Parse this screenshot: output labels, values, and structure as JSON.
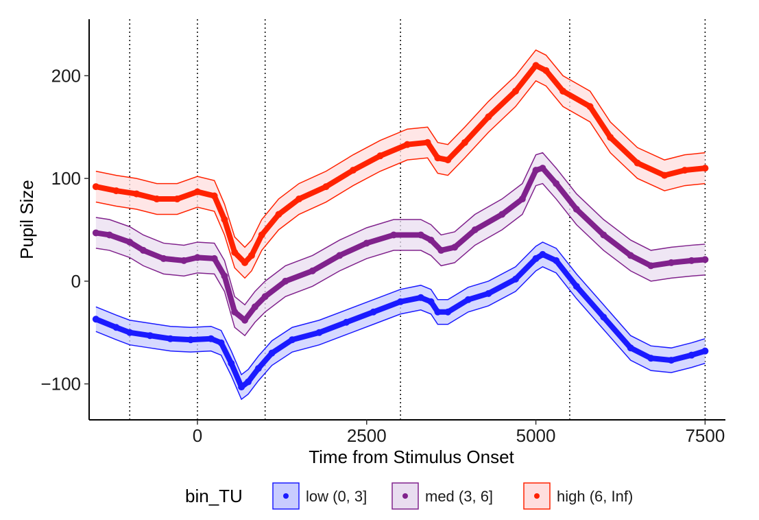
{
  "chart_data": {
    "type": "line",
    "title": "",
    "xlabel": "Time from Stimulus Onset",
    "ylabel": "Pupil Size",
    "xlim": [
      -1600,
      7800
    ],
    "ylim": [
      -135,
      255
    ],
    "xticks": [
      0,
      2500,
      5000,
      7500
    ],
    "xtick_labels": [
      "0",
      "2500",
      "5000",
      "7500"
    ],
    "yticks": [
      -100,
      0,
      100,
      200
    ],
    "ytick_labels": [
      "−100",
      "0",
      "100",
      "200"
    ],
    "vlines": [
      -1000,
      0,
      1000,
      3000,
      5500,
      7500
    ],
    "grid": false,
    "legend_title": "bin_TU",
    "legend_position": "bottom",
    "series": [
      {
        "name": "low (0, 3]",
        "color": "#1a1aff",
        "fill": "#c8ccff",
        "x": [
          -1500,
          -1200,
          -1000,
          -700,
          -400,
          -100,
          200,
          350,
          500,
          650,
          750,
          900,
          1100,
          1400,
          1800,
          2200,
          2600,
          3000,
          3300,
          3450,
          3550,
          3700,
          4000,
          4300,
          4700,
          5000,
          5100,
          5300,
          5600,
          6000,
          6400,
          6700,
          7000,
          7300,
          7500
        ],
        "values": [
          -37,
          -45,
          -50,
          -53,
          -56,
          -57,
          -56,
          -60,
          -80,
          -103,
          -98,
          -85,
          -70,
          -57,
          -50,
          -40,
          -30,
          -20,
          -16,
          -20,
          -30,
          -30,
          -18,
          -12,
          2,
          22,
          26,
          20,
          -5,
          -35,
          -65,
          -75,
          -77,
          -72,
          -68
        ],
        "band": 12
      },
      {
        "name": "med (3, 6]",
        "color": "#80228c",
        "fill": "#e9ddf0",
        "x": [
          -1500,
          -1300,
          -1000,
          -800,
          -500,
          -200,
          0,
          250,
          400,
          550,
          700,
          850,
          1000,
          1300,
          1700,
          2100,
          2500,
          2900,
          3300,
          3450,
          3600,
          3800,
          4100,
          4500,
          4800,
          5000,
          5100,
          5300,
          5600,
          6000,
          6400,
          6700,
          7000,
          7300,
          7500
        ],
        "values": [
          47,
          45,
          38,
          30,
          22,
          20,
          23,
          22,
          5,
          -30,
          -38,
          -25,
          -15,
          0,
          10,
          25,
          37,
          45,
          45,
          40,
          30,
          33,
          50,
          65,
          80,
          108,
          110,
          95,
          70,
          45,
          25,
          15,
          18,
          20,
          21
        ],
        "band": 15
      },
      {
        "name": "high (6, Inf)",
        "color": "#ff2200",
        "fill": "#ffdede",
        "x": [
          -1500,
          -1200,
          -900,
          -600,
          -300,
          0,
          250,
          400,
          550,
          700,
          800,
          950,
          1200,
          1500,
          1900,
          2300,
          2700,
          3100,
          3400,
          3550,
          3700,
          3950,
          4300,
          4700,
          5000,
          5150,
          5400,
          5800,
          6100,
          6500,
          6900,
          7200,
          7500
        ],
        "values": [
          92,
          88,
          85,
          80,
          80,
          87,
          83,
          60,
          28,
          18,
          25,
          45,
          65,
          80,
          92,
          108,
          122,
          133,
          135,
          120,
          118,
          135,
          160,
          185,
          210,
          205,
          185,
          170,
          140,
          115,
          103,
          108,
          110
        ],
        "band": 15
      }
    ]
  }
}
